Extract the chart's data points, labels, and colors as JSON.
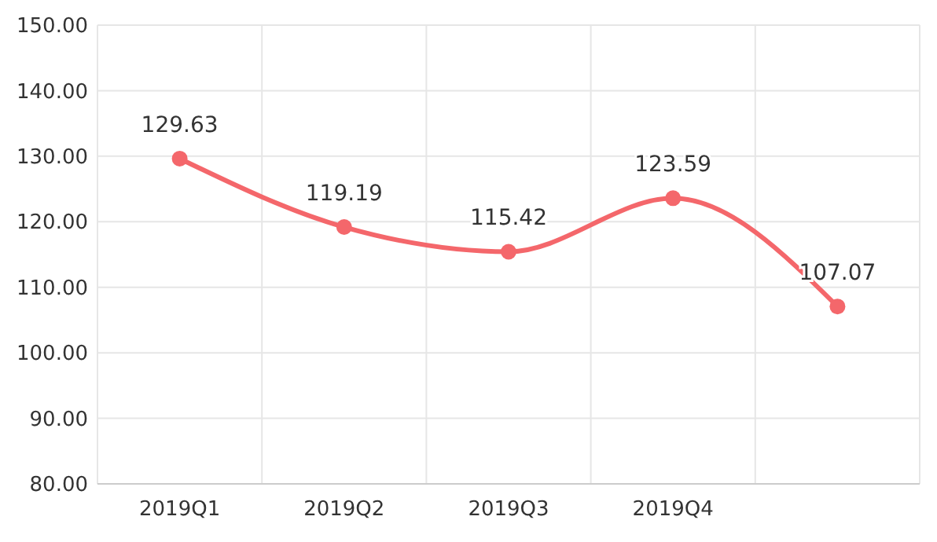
{
  "chart_data": {
    "type": "line",
    "categories": [
      "2019Q1",
      "2019Q2",
      "2019Q3",
      "2019Q4",
      null
    ],
    "series": [
      {
        "color": "#f4676b",
        "values": [
          129.63,
          119.19,
          115.42,
          123.59,
          107.07
        ]
      }
    ],
    "ylim": [
      80,
      150
    ],
    "yticks": [
      {
        "value": 80,
        "label": "80.00"
      },
      {
        "value": 90,
        "label": "90.00"
      },
      {
        "value": 100,
        "label": "100.00"
      },
      {
        "value": 110,
        "label": "110.00"
      },
      {
        "value": 120,
        "label": "120.00"
      },
      {
        "value": 130,
        "label": "130.00"
      },
      {
        "value": 140,
        "label": "140.00"
      },
      {
        "value": 150,
        "label": "150.00"
      }
    ],
    "grid": true,
    "marker": "circle",
    "line_style": "solid",
    "data_labels": true
  }
}
